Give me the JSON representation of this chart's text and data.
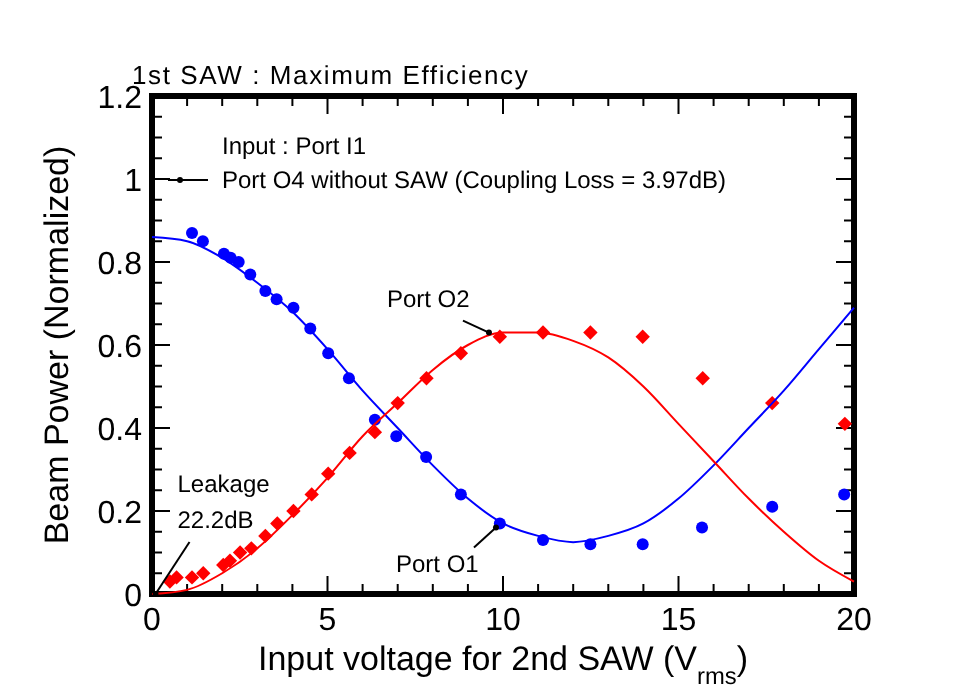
{
  "chart_data": {
    "type": "scatter",
    "title": "1st SAW : Maximum Efficiency",
    "xlabel": "Input voltage for 2nd SAW (V$_{rms}$)",
    "ylabel": "Beam  Power (Normalized)",
    "xlim": [
      0,
      20
    ],
    "xticks": [
      0,
      {
        "value": 1,
        "label": null
      },
      {
        "value": 2,
        "label": null
      },
      {
        "value": 3,
        "label": null
      },
      {
        "value": 4,
        "label": null
      },
      5,
      {
        "value": 6,
        "label": null
      },
      {
        "value": 7,
        "label": null
      },
      {
        "value": 8,
        "label": null
      },
      {
        "value": 9,
        "label": null
      },
      10,
      {
        "value": 11,
        "label": null
      },
      {
        "value": 12,
        "label": null
      },
      {
        "value": 13,
        "label": null
      },
      {
        "value": 14,
        "label": null
      },
      15,
      {
        "value": 16,
        "label": null
      },
      {
        "value": 17,
        "label": null
      },
      {
        "value": 18,
        "label": null
      },
      {
        "value": 19,
        "label": null
      },
      20
    ],
    "ylim": [
      0,
      1.2
    ],
    "yticks": [
      0,
      {
        "value": 0.05,
        "label": null
      },
      {
        "value": 0.1,
        "label": null
      },
      {
        "value": 0.15,
        "label": null
      },
      0.2,
      {
        "value": 0.25,
        "label": null
      },
      {
        "value": 0.3,
        "label": null
      },
      {
        "value": 0.35,
        "label": null
      },
      0.4,
      {
        "value": 0.45,
        "label": null
      },
      {
        "value": 0.5,
        "label": null
      },
      {
        "value": 0.55,
        "label": null
      },
      0.6,
      {
        "value": 0.65,
        "label": null
      },
      {
        "value": 0.7,
        "label": null
      },
      {
        "value": 0.75,
        "label": null
      },
      0.8,
      {
        "value": 0.85,
        "label": null
      },
      {
        "value": 0.9,
        "label": null
      },
      {
        "value": 0.95,
        "label": null
      },
      1,
      {
        "value": 1.05,
        "label": null
      },
      {
        "value": 1.1,
        "label": null
      },
      {
        "value": 1.15,
        "label": null
      },
      1.2
    ],
    "grid": false,
    "legend": "top left",
    "series": [
      {
        "marker": "circle",
        "color": "#0000ff",
        "x": [
          1.14,
          1.45,
          2.05,
          2.24,
          2.47,
          2.8,
          3.23,
          3.55,
          4.03,
          4.51,
          5.02,
          5.61,
          6.35,
          6.96,
          7.81,
          8.8,
          9.91,
          11.14,
          12.49,
          13.98,
          15.67,
          17.67,
          19.72
        ],
        "values": [
          0.87,
          0.85,
          0.82,
          0.81,
          0.8,
          0.77,
          0.73,
          0.71,
          0.69,
          0.64,
          0.58,
          0.52,
          0.42,
          0.38,
          0.33,
          0.24,
          0.17,
          0.13,
          0.12,
          0.12,
          0.16,
          0.21,
          0.24
        ]
      },
      {
        "marker": "diamond",
        "color": "#ff0000",
        "x": [
          0.51,
          0.7,
          1.14,
          1.46,
          2.03,
          2.22,
          2.51,
          2.83,
          3.23,
          3.57,
          4.03,
          4.55,
          5.02,
          5.63,
          6.35,
          7.0,
          7.82,
          8.8,
          9.91,
          11.14,
          12.49,
          13.98,
          15.69,
          17.67,
          19.74
        ],
        "values": [
          0.03,
          0.04,
          0.04,
          0.05,
          0.07,
          0.08,
          0.1,
          0.11,
          0.14,
          0.17,
          0.2,
          0.24,
          0.29,
          0.34,
          0.39,
          0.46,
          0.52,
          0.58,
          0.62,
          0.63,
          0.63,
          0.62,
          0.52,
          0.46,
          0.41
        ]
      },
      {
        "type": "line",
        "marker": "none",
        "color": "#0000ff",
        "x": [
          0,
          1,
          2,
          3,
          4,
          5,
          6,
          7,
          8,
          9,
          10,
          11,
          12,
          13,
          14,
          15,
          16,
          17,
          18,
          19,
          20
        ],
        "values": [
          0.86,
          0.85,
          0.81,
          0.75,
          0.68,
          0.59,
          0.49,
          0.4,
          0.31,
          0.23,
          0.17,
          0.14,
          0.125,
          0.14,
          0.17,
          0.23,
          0.31,
          0.4,
          0.49,
          0.59,
          0.69
        ]
      },
      {
        "type": "line",
        "marker": "none",
        "color": "#ff0000",
        "x": [
          0,
          1,
          2,
          3,
          4,
          5,
          6,
          7,
          8,
          9,
          10,
          11,
          12,
          13,
          14,
          15,
          16,
          17,
          18,
          19,
          20
        ],
        "values": [
          0,
          0.01,
          0.05,
          0.11,
          0.19,
          0.28,
          0.38,
          0.46,
          0.54,
          0.6,
          0.63,
          0.63,
          0.61,
          0.57,
          0.5,
          0.41,
          0.32,
          0.23,
          0.15,
          0.08,
          0.03
        ]
      },
      {
        "type": "line",
        "marker": "circle",
        "color": "#000000",
        "name": "Port O4 without SAW (Coupling Loss = 3.97dB)"
      }
    ],
    "annotations": [
      "Input : Port I1",
      {
        "text": "Port O2",
        "x": 9.6,
        "y": 0.63
      },
      {
        "text": "Port O1",
        "x": 9.8,
        "y": 0.16
      },
      {
        "text": "Leakage\n22.2dB",
        "x": 0.1,
        "y": 0
      }
    ]
  }
}
